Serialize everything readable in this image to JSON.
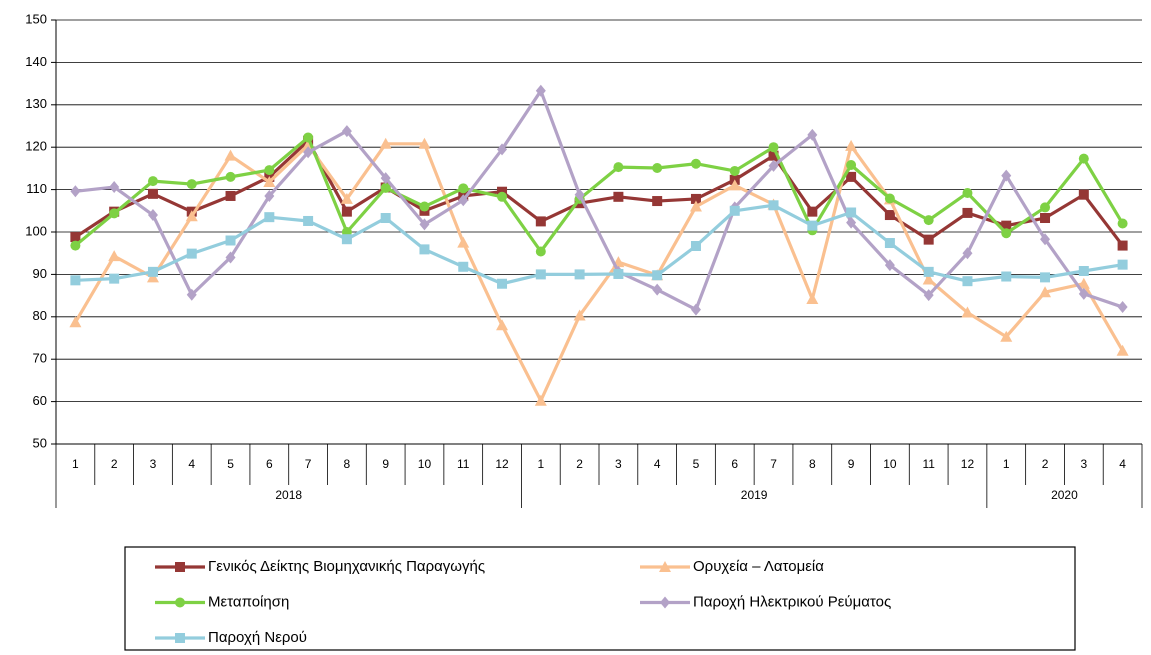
{
  "chart_data": {
    "type": "line",
    "groups": [
      {
        "label": "2018",
        "categories": [
          "1",
          "2",
          "3",
          "4",
          "5",
          "6",
          "7",
          "8",
          "9",
          "10",
          "11",
          "12"
        ]
      },
      {
        "label": "2019",
        "categories": [
          "1",
          "2",
          "3",
          "4",
          "5",
          "6",
          "7",
          "8",
          "9",
          "10",
          "11",
          "12"
        ]
      },
      {
        "label": "2020",
        "categories": [
          "1",
          "2",
          "3",
          "4"
        ]
      }
    ],
    "ylim": [
      50,
      150
    ],
    "yticks": [
      50,
      60,
      70,
      80,
      90,
      100,
      110,
      120,
      130,
      140,
      150
    ],
    "grid": true,
    "series": [
      {
        "name": "Γενικός Δείκτης Βιομηχανικής Παραγωγής",
        "color": "#953735",
        "marker": "square",
        "values": [
          98.8,
          104.8,
          109.0,
          104.8,
          108.5,
          113.0,
          121.5,
          104.8,
          110.5,
          105.0,
          108.5,
          109.5,
          102.5,
          106.8,
          108.3,
          107.3,
          107.8,
          112.3,
          118.0,
          104.8,
          113.0,
          104.0,
          98.2,
          104.5,
          101.5,
          103.3,
          108.8,
          96.8
        ]
      },
      {
        "name": "Ορυχεία – Λατομεία",
        "color": "#fac090",
        "marker": "triangle",
        "values": [
          78.7,
          94.3,
          89.3,
          103.7,
          118.0,
          111.8,
          120.5,
          107.8,
          120.8,
          120.8,
          97.5,
          78.0,
          60.2,
          80.3,
          92.9,
          89.8,
          106.0,
          111.0,
          106.5,
          84.2,
          120.3,
          107.7,
          88.8,
          81.0,
          75.3,
          85.8,
          87.8,
          72.0
        ]
      },
      {
        "name": "Μεταποίηση",
        "color": "#7ed144",
        "marker": "circle",
        "values": [
          96.8,
          104.4,
          112.0,
          111.3,
          113.0,
          114.6,
          122.3,
          100.0,
          110.4,
          106.0,
          110.3,
          108.3,
          95.4,
          107.8,
          115.3,
          115.1,
          116.1,
          114.4,
          120.0,
          100.4,
          115.8,
          107.9,
          102.8,
          109.2,
          99.7,
          105.8,
          117.3,
          102.0
        ]
      },
      {
        "name": "Παροχή Ηλεκτρικού Ρεύματος",
        "color": "#b3a2c7",
        "marker": "diamond",
        "values": [
          109.6,
          110.6,
          104.0,
          85.2,
          94.0,
          108.5,
          118.8,
          123.8,
          112.7,
          101.8,
          107.5,
          119.5,
          133.3,
          108.8,
          90.6,
          86.4,
          81.7,
          105.8,
          115.6,
          122.9,
          102.2,
          92.2,
          85.1,
          95.0,
          113.3,
          98.3,
          85.4,
          82.3
        ]
      },
      {
        "name": "Παροχή Νερού",
        "color": "#93cddd",
        "marker": "square",
        "values": [
          88.6,
          89.0,
          90.6,
          94.9,
          98.0,
          103.5,
          102.6,
          98.3,
          103.3,
          95.9,
          91.8,
          87.8,
          90.0,
          90.0,
          90.1,
          89.8,
          96.7,
          105.0,
          106.3,
          101.5,
          104.6,
          97.4,
          90.6,
          88.4,
          89.5,
          89.3,
          90.8,
          92.3
        ]
      }
    ]
  }
}
